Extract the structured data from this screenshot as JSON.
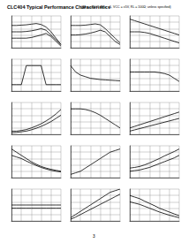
{
  "title": "CLC404 Typical Performance Characteristics",
  "subtitle": "(TA = +25°C, AV = +6, VCC = ±5V, RL = 100Ω; unless specified)",
  "page": "3",
  "chart_data": [
    {
      "type": "line",
      "x": [
        0,
        1,
        2,
        3,
        4,
        5,
        6,
        7,
        8,
        9,
        10
      ],
      "xlim": [
        0,
        10
      ],
      "ylim": [
        0,
        10
      ],
      "xticks": [
        0,
        2,
        4,
        6,
        8,
        10
      ],
      "yticks": [
        0,
        2,
        4,
        6,
        8,
        10
      ],
      "grid": true,
      "tick_labels": false,
      "series": [
        {
          "color": "#000000",
          "values": [
            7,
            7,
            7.1,
            7.2,
            7.4,
            7.6,
            7.3,
            6.5,
            5,
            3,
            1
          ]
        },
        {
          "color": "#000000",
          "values": [
            5,
            5,
            5,
            5.1,
            5.3,
            5.6,
            6,
            5.5,
            4,
            2.5,
            1
          ]
        },
        {
          "color": "#000000",
          "values": [
            3,
            3,
            3,
            3,
            3.2,
            3.6,
            4,
            4.5,
            3.5,
            2,
            0.5
          ]
        }
      ]
    },
    {
      "type": "line",
      "x": [
        0,
        1,
        2,
        3,
        4,
        5,
        6,
        7,
        8,
        9,
        10
      ],
      "xlim": [
        0,
        10
      ],
      "ylim": [
        0,
        10
      ],
      "xticks": [
        0,
        2,
        4,
        6,
        8,
        10
      ],
      "yticks": [
        0,
        2,
        4,
        6,
        8,
        10
      ],
      "grid": true,
      "tick_labels": false,
      "series": [
        {
          "color": "#000000",
          "values": [
            7,
            7,
            7,
            7.1,
            7.3,
            7.5,
            7.2,
            6,
            4.5,
            3,
            1.5
          ]
        },
        {
          "color": "#000000",
          "values": [
            4,
            4,
            4.1,
            4.3,
            4.6,
            5,
            5.5,
            5,
            3.5,
            2,
            1
          ]
        }
      ]
    },
    {
      "type": "line",
      "x": [
        0,
        1,
        2,
        3,
        4,
        5,
        6,
        7,
        8,
        9,
        10
      ],
      "xlim": [
        0,
        10
      ],
      "ylim": [
        0,
        10
      ],
      "xticks": [
        0,
        2,
        4,
        6,
        8,
        10
      ],
      "yticks": [
        0,
        2,
        4,
        6,
        8,
        10
      ],
      "grid": true,
      "tick_labels": false,
      "series": [
        {
          "color": "#000000",
          "values": [
            9,
            8.5,
            8,
            7.5,
            7,
            6.5,
            6,
            5.5,
            5,
            4.5,
            4
          ]
        },
        {
          "color": "#000000",
          "values": [
            5,
            5,
            5,
            4.8,
            4.5,
            4,
            3.5,
            3,
            2.5,
            2,
            1.5
          ]
        }
      ]
    },
    {
      "type": "line",
      "x": [
        0,
        1,
        2,
        3,
        4,
        5,
        6,
        7,
        8,
        9,
        10
      ],
      "xlim": [
        0,
        10
      ],
      "ylim": [
        0,
        10
      ],
      "xticks": [
        0,
        2,
        4,
        6,
        8,
        10
      ],
      "yticks": [
        0,
        2,
        4,
        6,
        8,
        10
      ],
      "grid": true,
      "tick_labels": false,
      "series": [
        {
          "color": "#000000",
          "values": [
            2,
            2,
            2,
            8,
            8,
            8,
            8,
            2,
            2,
            2,
            2
          ]
        }
      ]
    },
    {
      "type": "line",
      "x": [
        0,
        1,
        2,
        3,
        4,
        5,
        6,
        7,
        8,
        9,
        10
      ],
      "xlim": [
        0,
        10
      ],
      "ylim": [
        0,
        10
      ],
      "xticks": [
        0,
        2,
        4,
        6,
        8,
        10
      ],
      "yticks": [
        0,
        2,
        4,
        6,
        8,
        10
      ],
      "grid": true,
      "tick_labels": false,
      "series": [
        {
          "color": "#000000",
          "values": [
            8,
            6,
            5,
            4.5,
            4,
            3.8,
            3.6,
            3.5,
            3.4,
            3.3,
            3.2
          ]
        }
      ]
    },
    {
      "type": "line",
      "x": [
        0,
        1,
        2,
        3,
        4,
        5,
        6,
        7,
        8,
        9,
        10
      ],
      "xlim": [
        0,
        10
      ],
      "ylim": [
        0,
        10
      ],
      "xticks": [
        0,
        2,
        4,
        6,
        8,
        10
      ],
      "yticks": [
        0,
        2,
        4,
        6,
        8,
        10
      ],
      "grid": true,
      "tick_labels": false,
      "series": [
        {
          "color": "#000000",
          "values": [
            6,
            6,
            6,
            6,
            6,
            6,
            5.8,
            5.5,
            5,
            4,
            3
          ]
        }
      ]
    },
    {
      "type": "line",
      "x": [
        0,
        1,
        2,
        3,
        4,
        5,
        6,
        7,
        8,
        9,
        10
      ],
      "xlim": [
        0,
        10
      ],
      "ylim": [
        0,
        10
      ],
      "xticks": [
        0,
        2,
        4,
        6,
        8,
        10
      ],
      "yticks": [
        0,
        2,
        4,
        6,
        8,
        10
      ],
      "grid": true,
      "tick_labels": false,
      "series": [
        {
          "color": "#000000",
          "values": [
            1,
            1,
            1.2,
            1.5,
            2,
            2.6,
            3.3,
            4.2,
            5.2,
            6.4,
            7.8
          ]
        },
        {
          "color": "#000000",
          "values": [
            0.5,
            0.6,
            0.8,
            1,
            1.4,
            1.9,
            2.5,
            3.2,
            4,
            5,
            6
          ]
        }
      ]
    },
    {
      "type": "line",
      "x": [
        0,
        1,
        2,
        3,
        4,
        5,
        6,
        7,
        8,
        9,
        10
      ],
      "xlim": [
        0,
        10
      ],
      "ylim": [
        0,
        10
      ],
      "xticks": [
        0,
        2,
        4,
        6,
        8,
        10
      ],
      "yticks": [
        0,
        2,
        4,
        6,
        8,
        10
      ],
      "grid": true,
      "tick_labels": false,
      "series": [
        {
          "color": "#000000",
          "values": [
            8,
            8,
            8,
            7.8,
            7.4,
            6.8,
            6,
            5,
            4,
            3,
            2
          ]
        }
      ]
    },
    {
      "type": "line",
      "x": [
        0,
        1,
        2,
        3,
        4,
        5,
        6,
        7,
        8,
        9,
        10
      ],
      "xlim": [
        0,
        10
      ],
      "ylim": [
        0,
        10
      ],
      "xticks": [
        0,
        2,
        4,
        6,
        8,
        10
      ],
      "yticks": [
        0,
        2,
        4,
        6,
        8,
        10
      ],
      "grid": true,
      "tick_labels": false,
      "series": [
        {
          "color": "#000000",
          "values": [
            2,
            2.5,
            3,
            3.5,
            4,
            4.5,
            5,
            5.5,
            6,
            6.5,
            7
          ]
        },
        {
          "color": "#000000",
          "values": [
            1,
            1.4,
            1.8,
            2.2,
            2.6,
            3,
            3.4,
            3.8,
            4.2,
            4.6,
            5
          ]
        }
      ]
    },
    {
      "type": "line",
      "x": [
        0,
        1,
        2,
        3,
        4,
        5,
        6,
        7,
        8,
        9,
        10
      ],
      "xlim": [
        0,
        10
      ],
      "ylim": [
        0,
        10
      ],
      "xticks": [
        0,
        2,
        4,
        6,
        8,
        10
      ],
      "yticks": [
        0,
        2,
        4,
        6,
        8,
        10
      ],
      "grid": true,
      "tick_labels": false,
      "series": [
        {
          "color": "#000000",
          "values": [
            9,
            8,
            7,
            6,
            5,
            4.2,
            3.5,
            3,
            2.6,
            2.3,
            2
          ]
        },
        {
          "color": "#000000",
          "values": [
            7,
            6.5,
            6,
            5.2,
            4.5,
            3.8,
            3.2,
            2.7,
            2.3,
            2,
            1.8
          ]
        }
      ]
    },
    {
      "type": "line",
      "x": [
        0,
        1,
        2,
        3,
        4,
        5,
        6,
        7,
        8,
        9,
        10
      ],
      "xlim": [
        0,
        10
      ],
      "ylim": [
        0,
        10
      ],
      "xticks": [
        0,
        2,
        4,
        6,
        8,
        10
      ],
      "yticks": [
        0,
        2,
        4,
        6,
        8,
        10
      ],
      "grid": true,
      "tick_labels": false,
      "series": [
        {
          "color": "#000000",
          "values": [
            1,
            1.5,
            2,
            3,
            4,
            5,
            6,
            7,
            8,
            8.5,
            9
          ]
        }
      ]
    },
    {
      "type": "line",
      "x": [
        0,
        1,
        2,
        3,
        4,
        5,
        6,
        7,
        8,
        9,
        10
      ],
      "xlim": [
        0,
        10
      ],
      "ylim": [
        0,
        10
      ],
      "xticks": [
        0,
        2,
        4,
        6,
        8,
        10
      ],
      "yticks": [
        0,
        2,
        4,
        6,
        8,
        10
      ],
      "grid": true,
      "tick_labels": false,
      "series": [
        {
          "color": "#000000",
          "values": [
            3,
            3.2,
            3.5,
            4,
            4.6,
            5.3,
            6,
            6.8,
            7.5,
            8.2,
            9
          ]
        },
        {
          "color": "#000000",
          "values": [
            2,
            2.2,
            2.4,
            2.8,
            3.2,
            3.8,
            4.4,
            5,
            5.6,
            6.2,
            7
          ]
        }
      ]
    },
    {
      "type": "line",
      "x": [
        0,
        1,
        2,
        3,
        4,
        5,
        6,
        7,
        8,
        9,
        10
      ],
      "xlim": [
        0,
        10
      ],
      "ylim": [
        0,
        10
      ],
      "xticks": [
        0,
        2,
        4,
        6,
        8,
        10
      ],
      "yticks": [
        0,
        2,
        4,
        6,
        8,
        10
      ],
      "grid": true,
      "tick_labels": false,
      "series": [
        {
          "color": "#000000",
          "values": [
            5,
            5,
            5,
            5,
            5,
            5,
            5,
            5,
            5,
            5,
            5
          ]
        },
        {
          "color": "#000000",
          "values": [
            4,
            4,
            4,
            4,
            4,
            4,
            4,
            4,
            4,
            4,
            4
          ]
        }
      ]
    },
    {
      "type": "line",
      "x": [
        0,
        1,
        2,
        3,
        4,
        5,
        6,
        7,
        8,
        9,
        10
      ],
      "xlim": [
        0,
        10
      ],
      "ylim": [
        0,
        10
      ],
      "xticks": [
        0,
        2,
        4,
        6,
        8,
        10
      ],
      "yticks": [
        0,
        2,
        4,
        6,
        8,
        10
      ],
      "grid": true,
      "tick_labels": false,
      "series": [
        {
          "color": "#000000",
          "values": [
            1,
            2,
            3,
            4,
            5,
            6,
            7,
            8,
            9,
            9.5,
            10
          ]
        },
        {
          "color": "#000000",
          "values": [
            0.5,
            1.2,
            2,
            2.8,
            3.6,
            4.4,
            5.2,
            6,
            6.8,
            7.6,
            8.4
          ]
        }
      ]
    },
    {
      "type": "line",
      "x": [
        0,
        1,
        2,
        3,
        4,
        5,
        6,
        7,
        8,
        9,
        10
      ],
      "xlim": [
        0,
        10
      ],
      "ylim": [
        0,
        10
      ],
      "xticks": [
        0,
        2,
        4,
        6,
        8,
        10
      ],
      "yticks": [
        0,
        2,
        4,
        6,
        8,
        10
      ],
      "grid": true,
      "tick_labels": false,
      "series": [
        {
          "color": "#000000",
          "values": [
            8,
            7.5,
            7,
            6.2,
            5.5,
            4.8,
            4,
            3.4,
            2.8,
            2.2,
            1.6
          ]
        },
        {
          "color": "#000000",
          "values": [
            6,
            5.6,
            5.2,
            4.6,
            4,
            3.4,
            2.8,
            2.3,
            1.8,
            1.4,
            1
          ]
        }
      ]
    }
  ]
}
